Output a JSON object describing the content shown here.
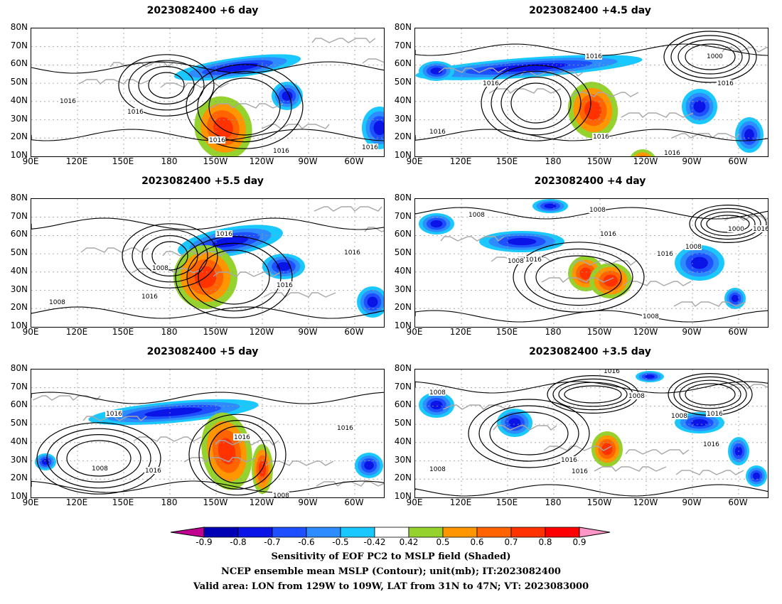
{
  "panels": [
    {
      "title": "2023082400  +6 day"
    },
    {
      "title": "2023082400  +4.5  day"
    },
    {
      "title": "2023082400  +5.5 day"
    },
    {
      "title": "2023082400  +4  day"
    },
    {
      "title": "2023082400  +5  day"
    },
    {
      "title": "2023082400  +3.5  day"
    }
  ],
  "lat_labels": [
    "80N",
    "70N",
    "60N",
    "50N",
    "40N",
    "30N",
    "20N",
    "10N"
  ],
  "lon_labels": [
    "90E",
    "120E",
    "150E",
    "180",
    "150W",
    "120W",
    "90W",
    "60W"
  ],
  "contour_labels": [
    "1016",
    "1008",
    "1000"
  ],
  "colorbar": {
    "ticks": [
      "-0.9",
      "-0.8",
      "-0.7",
      "-0.6",
      "-0.5",
      "-0.42",
      "0.42",
      "0.5",
      "0.6",
      "0.7",
      "0.8",
      "0.9"
    ],
    "colors": [
      "#c00090",
      "#0000b4",
      "#0a14e6",
      "#1e50ff",
      "#2d8cff",
      "#19c8ff",
      "#ffffff",
      "#96d22d",
      "#ff9600",
      "#ff6400",
      "#ff3200",
      "#ff0000",
      "#ff96c8"
    ]
  },
  "caption": {
    "line1": "Sensitivity of EOF PC2 to MSLP field (Shaded)",
    "line2": "NCEP ensemble mean MSLP (Contour); unit(mb); IT:2023082400",
    "line3": "Valid area: LON from 129W to 109W, LAT from 31N to 47N; VT: 2023083000"
  }
}
